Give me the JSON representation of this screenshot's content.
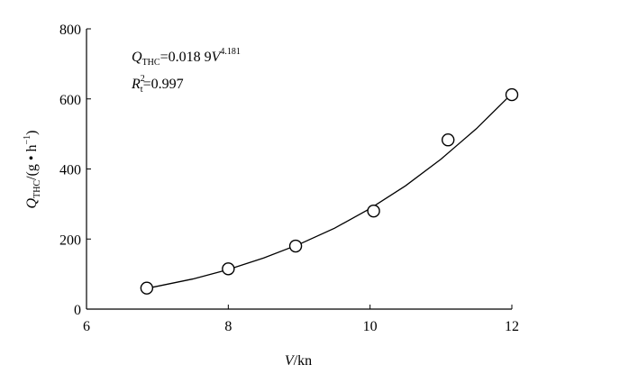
{
  "chart_data": {
    "type": "scatter",
    "x_label": [
      "V",
      "/kn"
    ],
    "y_label": [
      "Q",
      "THC",
      "/(g • h",
      "−1",
      ")"
    ],
    "annotations": [
      [
        "Q",
        "THC",
        "=0.018 9",
        "V",
        "4.181"
      ],
      [
        "R",
        "2",
        "t",
        "=0.997"
      ]
    ],
    "series": [
      {
        "kind": "points",
        "color": "#000000",
        "x": [
          6.85,
          8.0,
          8.95,
          10.05,
          11.1,
          12.0
        ],
        "values": [
          60,
          115,
          180,
          280,
          483,
          612
        ]
      },
      {
        "kind": "line",
        "color": "#000000",
        "x": [
          6.85,
          7.5,
          8.0,
          8.5,
          9.0,
          9.5,
          10.0,
          10.5,
          11.0,
          11.5,
          12.0
        ],
        "values": [
          59,
          86,
          113,
          146,
          185,
          231,
          287,
          352,
          428,
          515,
          615
        ]
      }
    ],
    "xlim": [
      6,
      12
    ],
    "xticks": [
      6,
      8,
      10,
      12
    ],
    "ylim": [
      0,
      800
    ],
    "yticks": [
      0,
      200,
      400,
      600,
      800
    ]
  }
}
